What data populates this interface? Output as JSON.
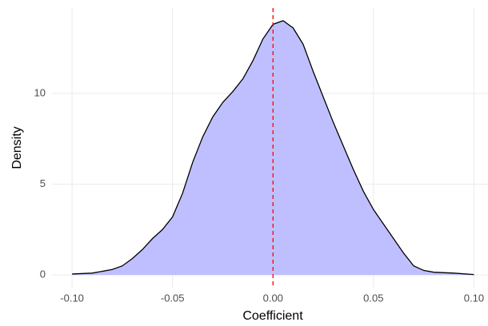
{
  "chart_data": {
    "type": "area",
    "x_label": "Coefficient",
    "y_label": "Density",
    "x": [
      -0.1,
      -0.09,
      -0.08,
      -0.075,
      -0.07,
      -0.065,
      -0.06,
      -0.055,
      -0.05,
      -0.045,
      -0.04,
      -0.035,
      -0.03,
      -0.025,
      -0.02,
      -0.015,
      -0.01,
      -0.005,
      0.0,
      0.005,
      0.01,
      0.015,
      0.02,
      0.025,
      0.03,
      0.035,
      0.04,
      0.045,
      0.05,
      0.055,
      0.06,
      0.065,
      0.07,
      0.075,
      0.08,
      0.09,
      0.1
    ],
    "values": [
      0.05,
      0.1,
      0.3,
      0.5,
      0.9,
      1.4,
      2.0,
      2.5,
      3.2,
      4.5,
      6.2,
      7.6,
      8.7,
      9.5,
      10.1,
      10.8,
      11.8,
      13.0,
      13.8,
      14.0,
      13.6,
      12.7,
      11.2,
      9.8,
      8.4,
      7.1,
      5.8,
      4.6,
      3.6,
      2.8,
      2.0,
      1.2,
      0.5,
      0.25,
      0.15,
      0.1,
      0.02
    ],
    "fill_color": "#bfbfff",
    "line_color": "#000000",
    "vline": 0,
    "vline_color": "#ff0000",
    "xlim": [
      -0.11,
      0.107
    ],
    "ylim": [
      -0.7,
      14.7
    ],
    "xticks": [
      {
        "value": -0.1,
        "label": "-0.10"
      },
      {
        "value": -0.05,
        "label": "-0.05"
      },
      {
        "value": 0,
        "label": "0.00"
      },
      {
        "value": 0.05,
        "label": "0.05"
      },
      {
        "value": 0.1,
        "label": "0.10"
      }
    ],
    "yticks": [
      0,
      5,
      10
    ],
    "grid": true
  }
}
